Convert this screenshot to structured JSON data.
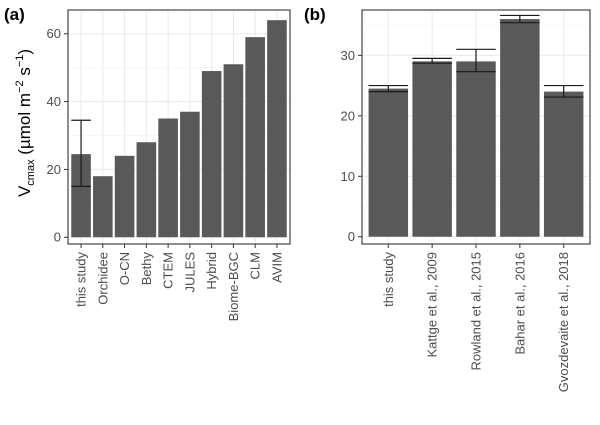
{
  "chart_data": [
    {
      "type": "bar",
      "panel_label": "(a)",
      "ylabel": {
        "main": "V",
        "sub": "cmax",
        "unit_open": " (µmol m",
        "exp1": "−2",
        "mid": " s",
        "exp2": "−1",
        "close": ")"
      },
      "categories": [
        "this study",
        "Orchidee",
        "O-CN",
        "Bethy",
        "CTEM",
        "JULES",
        "Hybrid",
        "Biome-BGC",
        "CLM",
        "AVIM"
      ],
      "values": [
        24.5,
        18,
        24,
        28,
        35,
        37,
        49,
        51,
        59,
        64
      ],
      "error_bars": [
        {
          "category": "this study",
          "low": 15,
          "high": 34.5
        }
      ],
      "ylim": [
        -2,
        67
      ],
      "yticks": [
        0,
        20,
        40,
        60
      ],
      "grid": true,
      "legend": "none"
    },
    {
      "type": "bar",
      "panel_label": "(b)",
      "categories": [
        "this study",
        "Kattge et al., 2009",
        "Rowland et al., 2015",
        "Bahar et al., 2016",
        "Gvozdevaite et al., 2018"
      ],
      "values": [
        24.5,
        29,
        29,
        36,
        24
      ],
      "error_bars": [
        {
          "category": "this study",
          "low": 24,
          "high": 25
        },
        {
          "category": "Kattge et al., 2009",
          "low": 28.7,
          "high": 29.5
        },
        {
          "category": "Rowland et al., 2015",
          "low": 27.3,
          "high": 31
        },
        {
          "category": "Bahar et al., 2016",
          "low": 35.4,
          "high": 36.6
        },
        {
          "category": "Gvozdevaite et al., 2018",
          "low": 23.1,
          "high": 25
        }
      ],
      "ylim": [
        -1.2,
        37.5
      ],
      "yticks": [
        0,
        10,
        20,
        30
      ],
      "grid": true,
      "legend": "none"
    }
  ]
}
